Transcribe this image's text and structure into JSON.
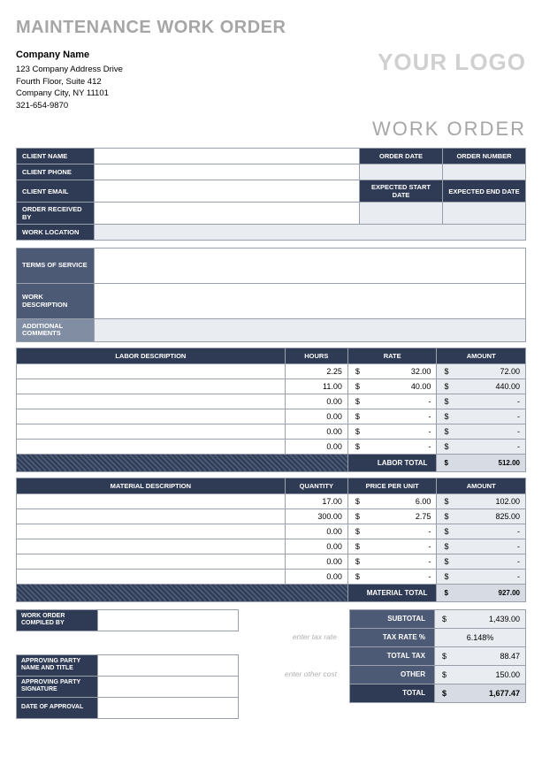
{
  "title": "MAINTENANCE WORK ORDER",
  "company": {
    "name": "Company Name",
    "addr1": "123 Company Address Drive",
    "addr2": "Fourth Floor, Suite 412",
    "city": "Company City, NY 11101",
    "phone": "321-654-9870"
  },
  "logo": "YOUR LOGO",
  "work_order_label": "WORK ORDER",
  "client_labels": {
    "name": "CLIENT NAME",
    "phone": "CLIENT PHONE",
    "email": "CLIENT EMAIL",
    "received": "ORDER RECEIVED BY",
    "location": "WORK LOCATION",
    "order_date": "ORDER DATE",
    "order_number": "ORDER NUMBER",
    "exp_start": "EXPECTED START DATE",
    "exp_end": "EXPECTED END DATE"
  },
  "desc_labels": {
    "terms": "TERMS OF SERVICE",
    "work": "WORK DESCRIPTION",
    "comments": "ADDITIONAL COMMENTS"
  },
  "labor": {
    "headers": {
      "desc": "LABOR DESCRIPTION",
      "hours": "HOURS",
      "rate": "RATE",
      "amount": "AMOUNT"
    },
    "rows": [
      {
        "hours": "2.25",
        "rate": "32.00",
        "amount": "72.00"
      },
      {
        "hours": "11.00",
        "rate": "40.00",
        "amount": "440.00"
      },
      {
        "hours": "0.00",
        "rate": "-",
        "amount": "-"
      },
      {
        "hours": "0.00",
        "rate": "-",
        "amount": "-"
      },
      {
        "hours": "0.00",
        "rate": "-",
        "amount": "-"
      },
      {
        "hours": "0.00",
        "rate": "-",
        "amount": "-"
      }
    ],
    "total_label": "LABOR TOTAL",
    "total": "512.00"
  },
  "material": {
    "headers": {
      "desc": "MATERIAL DESCRIPTION",
      "qty": "QUANTITY",
      "price": "PRICE PER UNIT",
      "amount": "AMOUNT"
    },
    "rows": [
      {
        "qty": "17.00",
        "price": "6.00",
        "amount": "102.00"
      },
      {
        "qty": "300.00",
        "price": "2.75",
        "amount": "825.00"
      },
      {
        "qty": "0.00",
        "price": "-",
        "amount": "-"
      },
      {
        "qty": "0.00",
        "price": "-",
        "amount": "-"
      },
      {
        "qty": "0.00",
        "price": "-",
        "amount": "-"
      },
      {
        "qty": "0.00",
        "price": "-",
        "amount": "-"
      }
    ],
    "total_label": "MATERIAL TOTAL",
    "total": "927.00"
  },
  "footer": {
    "compiled": "WORK ORDER COMPILED BY",
    "approving_name": "APPROVING PARTY NAME AND TITLE",
    "approving_sig": "APPROVING PARTY SIGNATURE",
    "date_approval": "DATE OF APPROVAL",
    "hint_tax": "enter tax rate",
    "hint_other": "enter other cost"
  },
  "summary": {
    "subtotal_label": "SUBTOTAL",
    "subtotal": "1,439.00",
    "taxrate_label": "TAX RATE %",
    "taxrate": "6.148%",
    "totaltax_label": "TOTAL TAX",
    "totaltax": "88.47",
    "other_label": "OTHER",
    "other": "150.00",
    "total_label": "TOTAL",
    "total": "1,677.47"
  },
  "dollar": "$"
}
